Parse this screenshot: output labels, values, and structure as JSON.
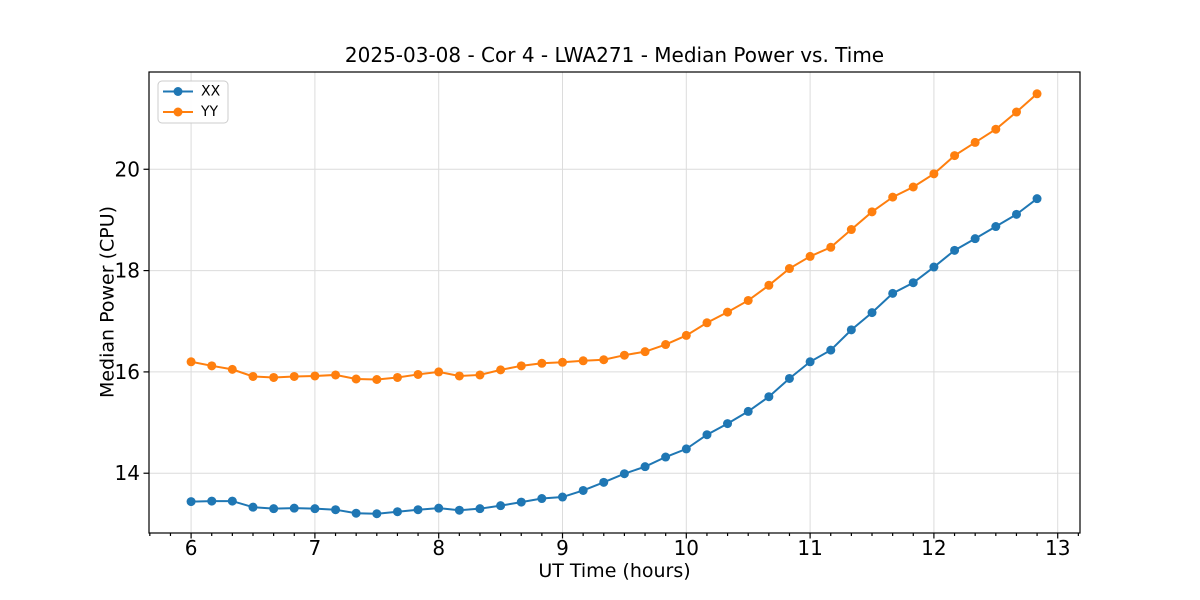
{
  "chart_data": {
    "type": "line",
    "title": "2025-03-08 - Cor 4 - LWA271 - Median Power vs. Time",
    "xlabel": "UT Time (hours)",
    "ylabel": "Median Power (CPU)",
    "xlim": [
      5.66,
      13.18
    ],
    "ylim": [
      12.82,
      21.92
    ],
    "xticks": [
      6,
      7,
      8,
      9,
      10,
      11,
      12,
      13
    ],
    "yticks": [
      14,
      16,
      18,
      20
    ],
    "minor_xtick_step": 0.1667,
    "grid": true,
    "grid_color": "#dcdcdc",
    "legend_position": "upper-left",
    "x": [
      6.0,
      6.167,
      6.333,
      6.5,
      6.667,
      6.833,
      7.0,
      7.167,
      7.333,
      7.5,
      7.667,
      7.833,
      8.0,
      8.167,
      8.333,
      8.5,
      8.667,
      8.833,
      9.0,
      9.167,
      9.333,
      9.5,
      9.667,
      9.833,
      10.0,
      10.167,
      10.333,
      10.5,
      10.667,
      10.833,
      11.0,
      11.167,
      11.333,
      11.5,
      11.667,
      11.833,
      12.0,
      12.167,
      12.333,
      12.5,
      12.667,
      12.833
    ],
    "series": [
      {
        "name": "XX",
        "color": "#1f77b4",
        "values": [
          13.44,
          13.45,
          13.45,
          13.33,
          13.3,
          13.31,
          13.3,
          13.28,
          13.21,
          13.2,
          13.24,
          13.28,
          13.31,
          13.27,
          13.3,
          13.36,
          13.43,
          13.5,
          13.53,
          13.66,
          13.82,
          13.99,
          14.13,
          14.32,
          14.48,
          14.76,
          14.98,
          15.22,
          15.51,
          15.87,
          16.2,
          16.43,
          16.83,
          17.17,
          17.55,
          17.76,
          18.07,
          18.4,
          18.63,
          18.87,
          19.11,
          19.42
        ]
      },
      {
        "name": "YY",
        "color": "#ff7f0e",
        "values": [
          16.2,
          16.12,
          16.05,
          15.91,
          15.89,
          15.91,
          15.92,
          15.94,
          15.86,
          15.85,
          15.89,
          15.95,
          16.0,
          15.92,
          15.94,
          16.04,
          16.12,
          16.17,
          16.19,
          16.22,
          16.24,
          16.33,
          16.4,
          16.54,
          16.72,
          16.97,
          17.18,
          17.41,
          17.71,
          18.04,
          18.28,
          18.46,
          18.81,
          19.16,
          19.45,
          19.65,
          19.91,
          20.27,
          20.53,
          20.79,
          21.13,
          21.49
        ]
      }
    ]
  }
}
